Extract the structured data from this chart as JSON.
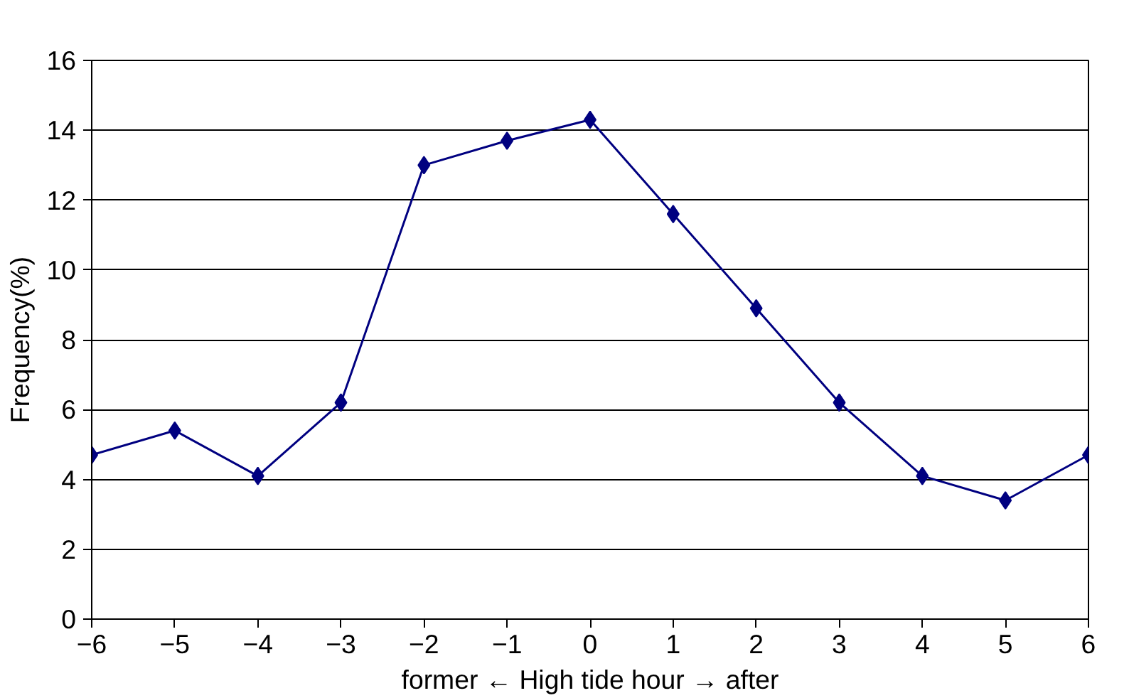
{
  "chart_data": {
    "type": "line",
    "xlabel": "former ← High tide hour → after",
    "ylabel": "Frequency(%)",
    "x": [
      -6,
      -5,
      -4,
      -3,
      -2,
      -1,
      0,
      1,
      2,
      3,
      4,
      5,
      6
    ],
    "series": [
      {
        "color": "#000080",
        "values": [
          4.7,
          5.4,
          4.1,
          6.2,
          13.0,
          13.7,
          14.3,
          11.6,
          8.9,
          6.2,
          4.1,
          3.4,
          4.7
        ]
      }
    ],
    "xlim": [
      -6,
      6
    ],
    "xticks": [
      {
        "value": -6,
        "label": "−6"
      },
      {
        "value": -5,
        "label": "−5"
      },
      {
        "value": -4,
        "label": "−4"
      },
      {
        "value": -3,
        "label": "−3"
      },
      {
        "value": -2,
        "label": "−2"
      },
      {
        "value": -1,
        "label": "−1"
      },
      0,
      1,
      2,
      3,
      4,
      5,
      6
    ],
    "ylim": [
      0,
      16
    ],
    "yticks": [
      0,
      2,
      4,
      6,
      8,
      10,
      12,
      14,
      16
    ],
    "grid": "y",
    "marker": "diamond",
    "line_style": "solid"
  }
}
